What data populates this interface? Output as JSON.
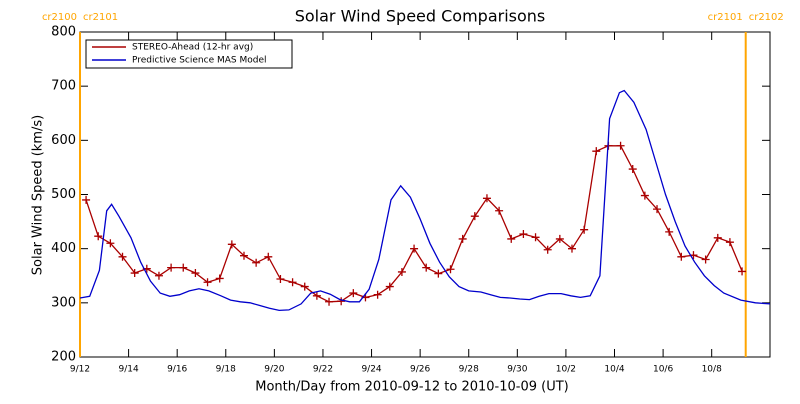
{
  "chart_data": {
    "type": "line",
    "title": "Solar Wind Speed Comparisons",
    "x_label": "Month/Day from 2010-09-12 to 2010-10-09 (UT)",
    "y_label": "Solar Wind Speed (km/s)",
    "xlim": [
      0,
      28.4
    ],
    "ylim": [
      200,
      800
    ],
    "yticks": [
      200,
      300,
      400,
      500,
      600,
      700,
      800
    ],
    "xticks": [
      {
        "value": 0,
        "label": "9/12"
      },
      {
        "value": 2,
        "label": "9/14"
      },
      {
        "value": 4,
        "label": "9/16"
      },
      {
        "value": 6,
        "label": "9/18"
      },
      {
        "value": 8,
        "label": "9/20"
      },
      {
        "value": 10,
        "label": "9/22"
      },
      {
        "value": 12,
        "label": "9/24"
      },
      {
        "value": 14,
        "label": "9/26"
      },
      {
        "value": 16,
        "label": "9/28"
      },
      {
        "value": 18,
        "label": "9/30"
      },
      {
        "value": 20,
        "label": "10/2"
      },
      {
        "value": 22,
        "label": "10/4"
      },
      {
        "value": 24,
        "label": "10/6"
      },
      {
        "value": 26,
        "label": "10/8"
      }
    ],
    "legend": "upper left",
    "carrington_boundaries": [
      {
        "x": 0,
        "labels": [
          "cr2100",
          "cr2101"
        ],
        "color": "#ffa500"
      },
      {
        "x": 27.4,
        "labels": [
          "cr2101",
          "cr2102"
        ],
        "color": "#ffa500"
      }
    ],
    "series": [
      {
        "name": "STEREO-Ahead (12-hr avg)",
        "color": "#aa0000",
        "marker": "plus",
        "x": [
          0.25,
          0.75,
          1.25,
          1.75,
          2.25,
          2.75,
          3.25,
          3.75,
          4.25,
          4.75,
          5.25,
          5.75,
          6.25,
          6.75,
          7.25,
          7.75,
          8.25,
          8.75,
          9.25,
          9.75,
          10.25,
          10.75,
          11.25,
          11.75,
          12.25,
          12.75,
          13.25,
          13.75,
          14.25,
          14.75,
          15.25,
          15.75,
          16.25,
          16.75,
          17.25,
          17.75,
          18.25,
          18.75,
          19.25,
          19.75,
          20.25,
          20.75,
          21.25,
          21.75,
          22.25,
          22.75,
          23.25,
          23.75,
          24.25,
          24.75,
          25.25,
          25.75,
          26.25,
          26.75,
          27.25
        ],
        "values": [
          490,
          423,
          410,
          385,
          355,
          363,
          350,
          365,
          365,
          355,
          338,
          345,
          408,
          387,
          374,
          385,
          344,
          338,
          330,
          313,
          302,
          303,
          318,
          310,
          315,
          330,
          357,
          400,
          365,
          354,
          362,
          418,
          460,
          493,
          470,
          418,
          427,
          421,
          398,
          418,
          400,
          435,
          580,
          590,
          590,
          547,
          498,
          473,
          431,
          385,
          388,
          380,
          420,
          412,
          358
        ]
      },
      {
        "name": "Predictive Science MAS Model",
        "color": "#0000cc",
        "x": [
          0,
          0.4,
          0.8,
          1.1,
          1.3,
          1.6,
          2.1,
          2.5,
          2.9,
          3.3,
          3.7,
          4.1,
          4.5,
          4.9,
          5.3,
          5.8,
          6.2,
          6.6,
          7.0,
          7.4,
          7.8,
          8.2,
          8.6,
          9.1,
          9.5,
          9.9,
          10.3,
          10.7,
          11.1,
          11.5,
          11.9,
          12.3,
          12.8,
          13.2,
          13.6,
          14.0,
          14.4,
          14.8,
          15.2,
          15.6,
          16.0,
          16.5,
          16.9,
          17.3,
          17.7,
          18.1,
          18.5,
          18.9,
          19.3,
          19.8,
          20.2,
          20.6,
          21.0,
          21.4,
          21.8,
          22.2,
          22.4,
          22.8,
          23.3,
          23.7,
          24.1,
          24.5,
          24.9,
          25.3,
          25.7,
          26.1,
          26.5,
          27.2,
          27.8,
          28.4
        ],
        "values": [
          309,
          312,
          360,
          470,
          482,
          460,
          420,
          375,
          340,
          318,
          312,
          315,
          322,
          326,
          322,
          313,
          305,
          302,
          300,
          295,
          290,
          286,
          287,
          298,
          318,
          322,
          316,
          306,
          302,
          302,
          325,
          380,
          490,
          516,
          495,
          455,
          410,
          375,
          348,
          330,
          322,
          320,
          315,
          310,
          309,
          307,
          306,
          312,
          317,
          317,
          313,
          310,
          313,
          350,
          640,
          688,
          692,
          670,
          620,
          560,
          500,
          450,
          405,
          375,
          350,
          332,
          318,
          305,
          300,
          298
        ]
      }
    ]
  }
}
